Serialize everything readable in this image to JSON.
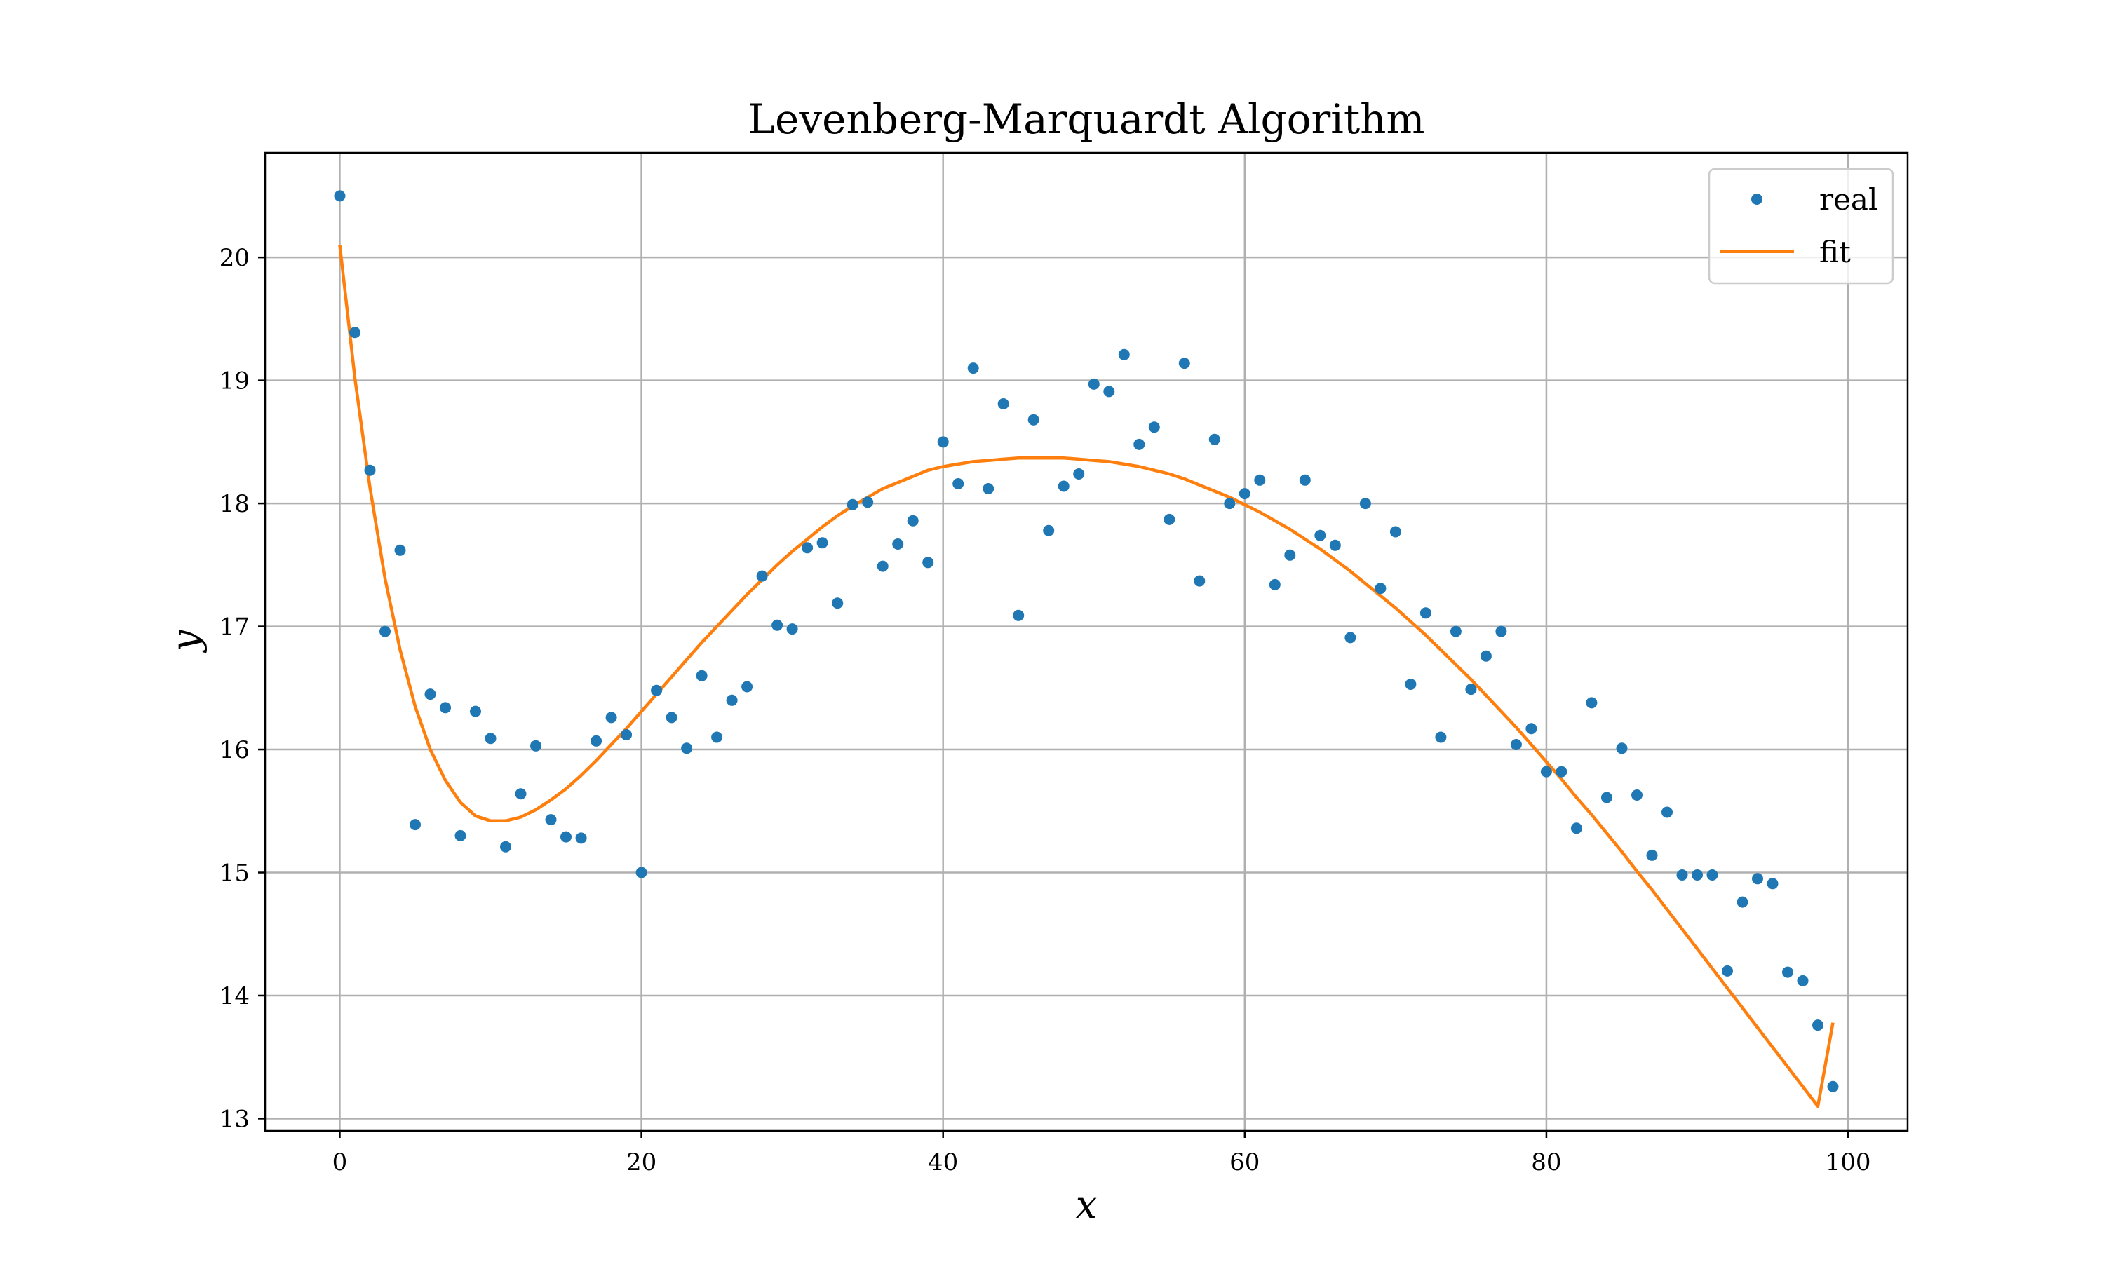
{
  "chart_data": {
    "type": "scatter",
    "title": "Levenberg-Marquardt Algorithm",
    "xlabel": "x",
    "ylabel": "y",
    "xlim": [
      -4.95,
      103.95
    ],
    "ylim": [
      12.9,
      20.85
    ],
    "xticks": [
      0,
      20,
      40,
      60,
      80,
      100
    ],
    "yticks": [
      13,
      14,
      15,
      16,
      17,
      18,
      19,
      20
    ],
    "grid": true,
    "legend_position": "top-right",
    "colors": {
      "real": "#1f77b4",
      "fit": "#ff7f0e"
    },
    "series": [
      {
        "name": "real",
        "style": "points",
        "x": [
          0,
          1,
          2,
          3,
          4,
          5,
          6,
          7,
          8,
          9,
          10,
          11,
          12,
          13,
          14,
          15,
          16,
          17,
          18,
          19,
          20,
          21,
          22,
          23,
          24,
          25,
          26,
          27,
          28,
          29,
          30,
          31,
          32,
          33,
          34,
          35,
          36,
          37,
          38,
          39,
          40,
          41,
          42,
          43,
          44,
          45,
          46,
          47,
          48,
          49,
          50,
          51,
          52,
          53,
          54,
          55,
          56,
          57,
          58,
          59,
          60,
          61,
          62,
          63,
          64,
          65,
          66,
          67,
          68,
          69,
          70,
          71,
          72,
          73,
          74,
          75,
          76,
          77,
          78,
          79,
          80,
          81,
          82,
          83,
          84,
          85,
          86,
          87,
          88,
          89,
          90,
          91,
          92,
          93,
          94,
          95,
          96,
          97,
          98,
          99
        ],
        "y": [
          20.5,
          19.39,
          18.27,
          16.96,
          17.62,
          15.39,
          16.45,
          16.34,
          15.3,
          16.31,
          16.09,
          15.21,
          15.64,
          16.03,
          15.43,
          15.29,
          15.28,
          16.07,
          16.26,
          16.12,
          15.0,
          16.48,
          16.26,
          16.01,
          16.6,
          16.1,
          16.4,
          16.51,
          17.41,
          17.01,
          16.98,
          17.64,
          17.68,
          17.19,
          17.99,
          18.01,
          17.49,
          17.67,
          17.86,
          17.52,
          18.5,
          18.16,
          19.1,
          18.12,
          18.81,
          17.09,
          18.68,
          17.78,
          18.14,
          18.24,
          18.97,
          18.91,
          19.21,
          18.48,
          18.62,
          17.87,
          19.14,
          17.37,
          18.52,
          18.0,
          18.08,
          18.19,
          17.34,
          17.58,
          18.19,
          17.74,
          17.66,
          16.91,
          18.0,
          17.31,
          17.77,
          16.53,
          17.11,
          16.1,
          16.96,
          16.49,
          16.76,
          16.96,
          16.04,
          16.17,
          15.82,
          15.82,
          15.36,
          16.38,
          15.61,
          16.01,
          15.63,
          15.14,
          15.49,
          14.98,
          14.98,
          14.98,
          14.2,
          14.76,
          14.95,
          14.91,
          14.19,
          14.12,
          13.76,
          13.26
        ]
      },
      {
        "name": "fit",
        "style": "line",
        "x": [
          0,
          1,
          2,
          3,
          4,
          5,
          6,
          7,
          8,
          9,
          10,
          11,
          12,
          13,
          14,
          15,
          16,
          17,
          18,
          19,
          20,
          21,
          22,
          23,
          24,
          25,
          26,
          27,
          28,
          29,
          30,
          31,
          32,
          33,
          34,
          35,
          36,
          37,
          38,
          39,
          40,
          41,
          42,
          43,
          44,
          45,
          46,
          47,
          48,
          49,
          50,
          51,
          52,
          53,
          54,
          55,
          56,
          57,
          58,
          59,
          60,
          61,
          62,
          63,
          64,
          65,
          66,
          67,
          68,
          69,
          70,
          71,
          72,
          73,
          74,
          75,
          76,
          77,
          78,
          79,
          80,
          81,
          82,
          83,
          84,
          85,
          86,
          87,
          88,
          89,
          90,
          91,
          92,
          93,
          94,
          95,
          96,
          97,
          98,
          99
        ],
        "y": [
          20.1,
          19.02,
          18.13,
          17.39,
          16.81,
          16.35,
          16.0,
          15.75,
          15.57,
          15.46,
          15.42,
          15.42,
          15.45,
          15.51,
          15.59,
          15.68,
          15.79,
          15.91,
          16.04,
          16.17,
          16.31,
          16.45,
          16.59,
          16.73,
          16.87,
          17.0,
          17.13,
          17.26,
          17.38,
          17.5,
          17.61,
          17.71,
          17.81,
          17.9,
          17.98,
          18.05,
          18.12,
          18.17,
          18.22,
          18.27,
          18.3,
          18.32,
          18.34,
          18.35,
          18.36,
          18.37,
          18.37,
          18.37,
          18.37,
          18.36,
          18.35,
          18.34,
          18.32,
          18.3,
          18.27,
          18.24,
          18.2,
          18.15,
          18.1,
          18.05,
          17.99,
          17.93,
          17.86,
          17.79,
          17.71,
          17.63,
          17.54,
          17.45,
          17.35,
          17.25,
          17.15,
          17.04,
          16.93,
          16.81,
          16.69,
          16.57,
          16.44,
          16.31,
          16.18,
          16.04,
          15.9,
          15.76,
          15.61,
          15.47,
          15.32,
          15.17,
          15.01,
          14.86,
          14.7,
          14.54,
          14.38,
          14.22,
          14.06,
          13.9,
          13.74,
          13.58,
          13.42,
          13.26,
          13.1,
          13.78
        ]
      }
    ]
  }
}
